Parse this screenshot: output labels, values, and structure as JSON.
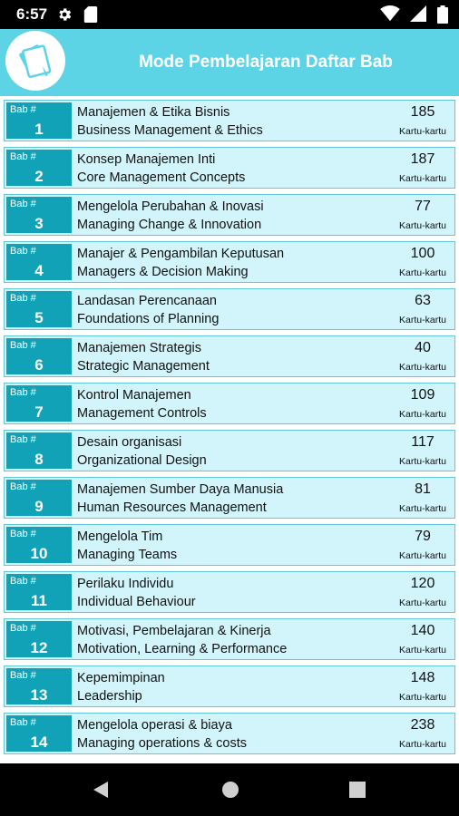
{
  "status_bar": {
    "time": "6:57",
    "left_icons": [
      "gear-icon",
      "sd-card-icon"
    ],
    "right_icons": [
      "wifi-icon",
      "signal-icon",
      "battery-icon"
    ]
  },
  "header": {
    "logo_icon": "cards-icon",
    "title": "Mode Pembelajaran Daftar Bab"
  },
  "chapters": [
    {
      "badge_label": "Bab #",
      "number": "1",
      "title_id": "Manajemen & Etika Bisnis",
      "title_en": "Business Management & Ethics",
      "count": "185",
      "count_label": "Kartu-kartu"
    },
    {
      "badge_label": "Bab #",
      "number": "2",
      "title_id": "Konsep Manajemen Inti",
      "title_en": "Core Management Concepts",
      "count": "187",
      "count_label": "Kartu-kartu"
    },
    {
      "badge_label": "Bab #",
      "number": "3",
      "title_id": "Mengelola Perubahan & Inovasi",
      "title_en": "Managing Change & Innovation",
      "count": "77",
      "count_label": "Kartu-kartu"
    },
    {
      "badge_label": "Bab #",
      "number": "4",
      "title_id": "Manajer & Pengambilan Keputusan",
      "title_en": "Managers & Decision Making",
      "count": "100",
      "count_label": "Kartu-kartu"
    },
    {
      "badge_label": "Bab #",
      "number": "5",
      "title_id": "Landasan Perencanaan",
      "title_en": "Foundations of Planning",
      "count": "63",
      "count_label": "Kartu-kartu"
    },
    {
      "badge_label": "Bab #",
      "number": "6",
      "title_id": "Manajemen Strategis",
      "title_en": "Strategic Management",
      "count": "40",
      "count_label": "Kartu-kartu"
    },
    {
      "badge_label": "Bab #",
      "number": "7",
      "title_id": "Kontrol Manajemen",
      "title_en": "Management Controls",
      "count": "109",
      "count_label": "Kartu-kartu"
    },
    {
      "badge_label": "Bab #",
      "number": "8",
      "title_id": "Desain organisasi",
      "title_en": "Organizational Design",
      "count": "117",
      "count_label": "Kartu-kartu"
    },
    {
      "badge_label": "Bab #",
      "number": "9",
      "title_id": "Manajemen Sumber Daya Manusia",
      "title_en": "Human Resources Management",
      "count": "81",
      "count_label": "Kartu-kartu"
    },
    {
      "badge_label": "Bab #",
      "number": "10",
      "title_id": "Mengelola Tim",
      "title_en": "Managing Teams",
      "count": "79",
      "count_label": "Kartu-kartu"
    },
    {
      "badge_label": "Bab #",
      "number": "11",
      "title_id": "Perilaku Individu",
      "title_en": "Individual Behaviour",
      "count": "120",
      "count_label": "Kartu-kartu"
    },
    {
      "badge_label": "Bab #",
      "number": "12",
      "title_id": "Motivasi, Pembelajaran & Kinerja",
      "title_en": "Motivation, Learning & Performance",
      "count": "140",
      "count_label": "Kartu-kartu"
    },
    {
      "badge_label": "Bab #",
      "number": "13",
      "title_id": "Kepemimpinan",
      "title_en": "Leadership",
      "count": "148",
      "count_label": "Kartu-kartu"
    },
    {
      "badge_label": "Bab #",
      "number": "14",
      "title_id": "Mengelola operasi & biaya",
      "title_en": "Managing operations & costs",
      "count": "238",
      "count_label": "Kartu-kartu"
    }
  ],
  "nav_bar": {
    "buttons": [
      "back-icon",
      "home-icon",
      "recents-icon"
    ]
  },
  "colors": {
    "header_bg": "#5dd3e6",
    "badge_bg": "#12a2b8",
    "row_bg": "#d2f5fb",
    "row_border": "#5fc9da"
  }
}
